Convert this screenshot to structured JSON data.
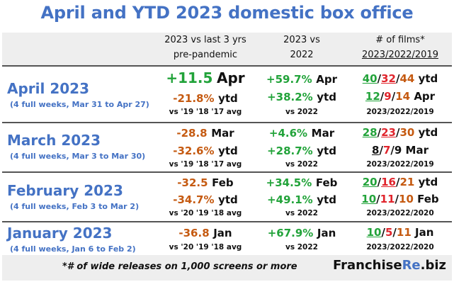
{
  "title": "April and YTD 2023 domestic box office",
  "headers": {
    "col1": [
      "2023 vs last 3 yrs",
      "pre-pandemic"
    ],
    "col2": [
      "2023 vs",
      "2022"
    ],
    "col3": [
      "# of films*",
      "2023/2022/2019"
    ]
  },
  "rows": [
    {
      "month": "April 2023",
      "range": "(4 full weeks, Mar 31 to Apr 27)",
      "c1_main_val": "+11.5",
      "c1_main_lbl": "Apr",
      "c1_sub_val": "-21.8%",
      "c1_sub_lbl": "ytd",
      "c1_note": "vs '19 '18 '17 avg",
      "c2_a_val": "+59.7%",
      "c2_a_lbl": "Apr",
      "c2_b_val": "+38.2%",
      "c2_b_lbl": "ytd",
      "c2_note": "vs 2022",
      "c3_a": [
        "40",
        "/",
        "32",
        "/",
        "44"
      ],
      "c3_a_lbl": "ytd",
      "c3_b": [
        "12",
        "/",
        "9",
        "/",
        "14"
      ],
      "c3_b_lbl": "Apr",
      "c3_note": "2023/2022/2019"
    },
    {
      "month": "March 2023",
      "range": "(4 full weeks, Mar 3 to Mar 30)",
      "c1_main_val": "-28.8",
      "c1_main_lbl": "Mar",
      "c1_sub_val": "-32.6%",
      "c1_sub_lbl": "ytd",
      "c1_note": "vs '19 '18 '17 avg",
      "c2_a_val": "+4.6%",
      "c2_a_lbl": "Mar",
      "c2_b_val": "+28.7%",
      "c2_b_lbl": "ytd",
      "c2_note": "vs 2022",
      "c3_a": [
        "28",
        "/",
        "23",
        "/",
        "30"
      ],
      "c3_a_lbl": "ytd",
      "c3_b": [
        "8",
        "/",
        "7",
        "/",
        "9"
      ],
      "c3_b_lbl": "Mar",
      "c3_note": "2023/2022/2019"
    },
    {
      "month": "February 2023",
      "range": "(4 full weeks, Feb 3 to Mar 2)",
      "c1_main_val": "-32.5",
      "c1_main_lbl": "Feb",
      "c1_sub_val": "-34.7%",
      "c1_sub_lbl": "ytd",
      "c1_note": "vs '20 '19 '18 avg",
      "c2_a_val": "+34.5%",
      "c2_a_lbl": "Feb",
      "c2_b_val": "+49.1%",
      "c2_b_lbl": "ytd",
      "c2_note": "vs 2022",
      "c3_a": [
        "20",
        "/",
        "16",
        "/",
        "21"
      ],
      "c3_a_lbl": "ytd",
      "c3_b": [
        "10",
        "/",
        "11",
        "/",
        "10"
      ],
      "c3_b_lbl": "Feb",
      "c3_note": "2023/2022/2020"
    },
    {
      "month": "January 2023",
      "range": "(4 full weeks, Jan 6 to Feb 2)",
      "c1_main_val": "-36.8",
      "c1_main_lbl": "Jan",
      "c1_note": "vs '20 '19 '18 avg",
      "c2_a_val": "+67.9%",
      "c2_a_lbl": "Jan",
      "c2_note": "vs 2022",
      "c3_b": [
        "10",
        "/",
        "5",
        "/",
        "11"
      ],
      "c3_b_lbl": "Jan",
      "c3_note": "2023/2022/2020"
    }
  ],
  "footer": {
    "note": "*# of wide releases on 1,000 screens or more",
    "brand_a": "Franchise",
    "brand_b": "Re",
    "brand_c": ".biz"
  }
}
